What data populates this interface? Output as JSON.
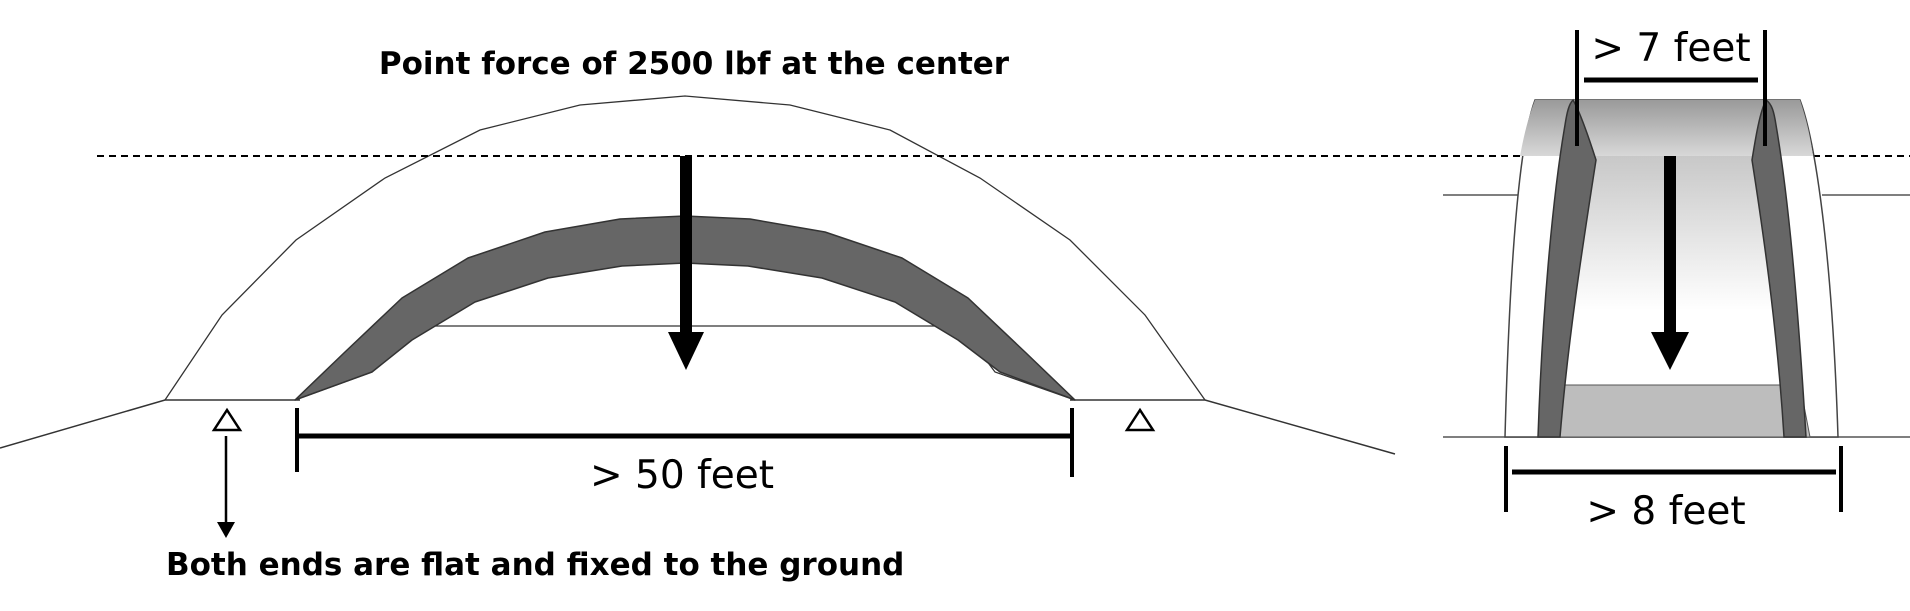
{
  "labels": {
    "point_force": "Point force of 2500 lbf at the center",
    "span_length": "> 50 feet",
    "ends_note": "Both ends are flat and fixed to the ground",
    "top_width": "> 7 feet",
    "base_width": "> 8 feet"
  },
  "colors": {
    "line": "#000000",
    "arch_outline": "#333333",
    "arch_fill_dark": "#666666",
    "floor_fill": "#bdbdbd",
    "background": "#ffffff"
  }
}
